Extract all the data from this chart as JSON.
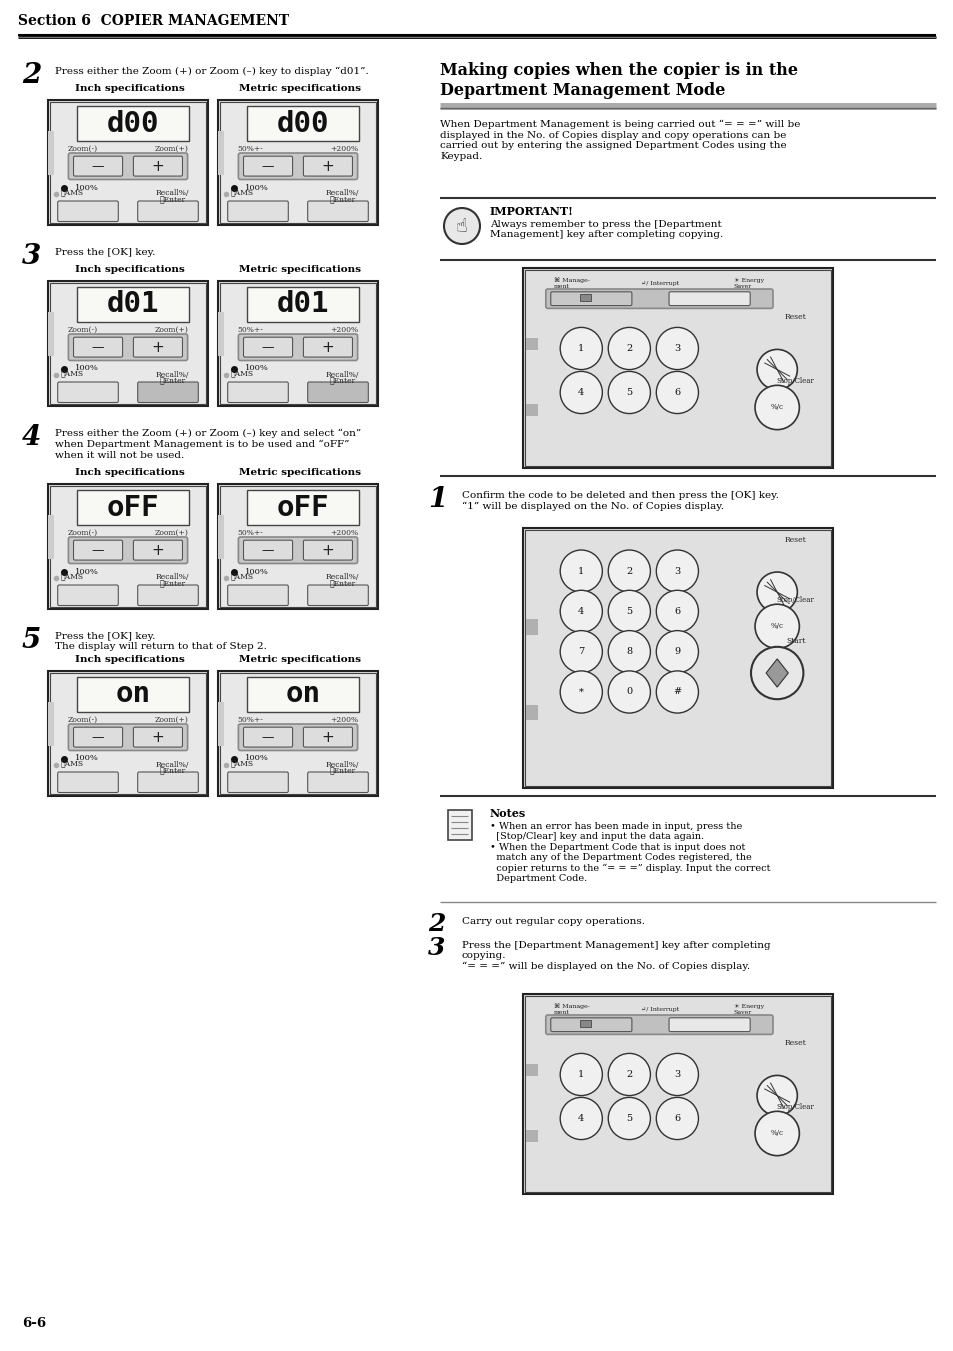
{
  "bg_color": "#ffffff",
  "page_width": 9.54,
  "page_height": 13.51,
  "section_header": "Section 6  COPIER MANAGEMENT",
  "page_number": "6-6",
  "step2_text": "Press either the Zoom (+) or Zoom (–) key to display “d01”.",
  "step3_text": "Press the [OK] key.",
  "step4_text": "Press either the Zoom (+) or Zoom (–) key and select “on”\nwhen Department Management is to be used and “oFF”\nwhen it will not be used.",
  "step5_text": "Press the [OK] key.\nThe display will return to that of Step 2.",
  "right_title_line1": "Making copies when the copier is in the",
  "right_title_line2": "Department Management Mode",
  "right_body_text": "When Department Management is being carried out “= = =” will be\ndisplayed in the No. of Copies display and copy operations can be\ncarried out by entering the assigned Department Codes using the\nKeypad.",
  "important_text": "Always remember to press the [Department\nManagement] key after completing copying.",
  "right_step1_text": "Confirm the code to be deleted and then press the [OK] key.\n“1” will be displayed on the No. of Copies display.",
  "notes_text": "When an error has been made in input, press the\n[Stop/Clear] key and input the data again.\nWhen the Department Code that is input does not\nmatch any of the Department Codes registered, the\ncopier returns to the “= = =” display. Input the correct\nDepartment Code.",
  "right_step2_text": "Carry out regular copy operations.",
  "right_step3_text": "Press the [Department Management] key after completing\ncopying.\n“= = =” will be displayed on the No. of Copies display."
}
